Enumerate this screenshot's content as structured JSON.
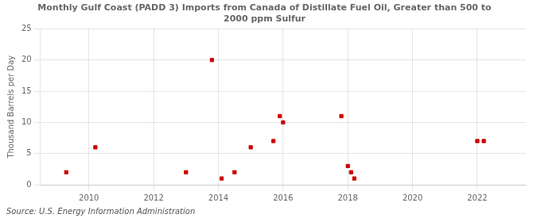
{
  "chart_data": {
    "type": "scatter",
    "title": "Monthly Gulf Coast (PADD 3) Imports from Canada of Distillate Fuel Oil, Greater than 500 to\n2000 ppm Sulfur",
    "ylabel": "Thousand Barrels per Day",
    "annotations": [
      "Source: U.S. Energy Information Administration"
    ],
    "x": [
      2009.3,
      2010.2,
      2013.0,
      2013.8,
      2014.1,
      2014.5,
      2015.0,
      2015.7,
      2015.9,
      2016.0,
      2017.8,
      2018.0,
      2018.1,
      2018.2,
      2022.0,
      2022.2
    ],
    "values": [
      2,
      6,
      2,
      20,
      1,
      2,
      6,
      7,
      11,
      10,
      11,
      3,
      2,
      1,
      7,
      7
    ],
    "color": "#cc0000",
    "marker": "square",
    "xlim": [
      2008.5,
      2023.5
    ],
    "xticks": [
      2010,
      2012,
      2014,
      2016,
      2018,
      2020,
      2022
    ],
    "ylim": [
      0,
      25
    ],
    "yticks": [
      0,
      5,
      10,
      15,
      20,
      25
    ],
    "grid": true
  }
}
